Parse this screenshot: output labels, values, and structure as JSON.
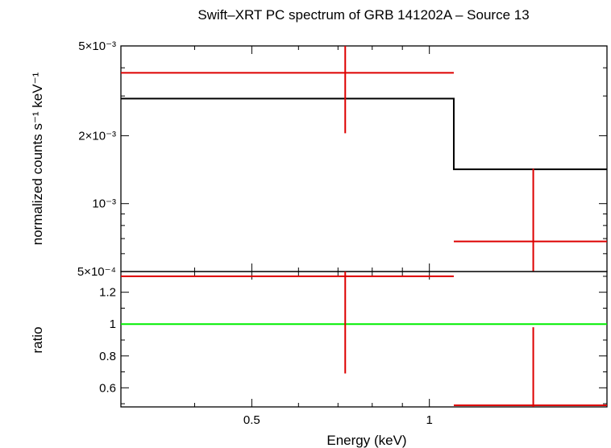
{
  "chart_data": [
    {
      "panel": "top",
      "type": "line",
      "title": "Swift–XRT PC spectrum of GRB 141202A – Source 13",
      "xlabel": "",
      "ylabel": "normalized counts s⁻¹ keV⁻¹",
      "xscale": "log",
      "yscale": "log",
      "xlim": [
        0.3,
        2.0
      ],
      "ylim": [
        0.0005,
        0.005
      ],
      "yticks": [
        {
          "value": 0.005,
          "label": "5×10⁻³"
        },
        {
          "value": 0.002,
          "label": "2×10⁻³"
        },
        {
          "value": 0.001,
          "label": "10⁻³"
        },
        {
          "value": 0.0005,
          "label": "5×10⁻⁴"
        }
      ],
      "series": [
        {
          "kind": "data",
          "color": "#dd0000",
          "points": [
            {
              "x": 0.72,
              "xlo": 0.3,
              "xhi": 1.1,
              "y": 0.0038,
              "ylo": 0.00205,
              "yhi": 0.005
            },
            {
              "x": 1.5,
              "xlo": 1.1,
              "xhi": 2.0,
              "y": 0.00068,
              "ylo": 0.0005,
              "yhi": 0.00143
            }
          ]
        },
        {
          "kind": "model",
          "color": "#000000",
          "steps": [
            {
              "xlo": 0.3,
              "xhi": 1.1,
              "y": 0.00292
            },
            {
              "xlo": 1.1,
              "xhi": 2.0,
              "y": 0.00142
            }
          ]
        }
      ]
    },
    {
      "panel": "bottom",
      "type": "scatter",
      "xlabel": "Energy (keV)",
      "ylabel": "ratio",
      "xscale": "log",
      "xlim": [
        0.3,
        2.0
      ],
      "ylim": [
        0.48,
        1.33
      ],
      "xticks": [
        {
          "value": 0.5,
          "label": "0.5"
        },
        {
          "value": 1.0,
          "label": "1"
        }
      ],
      "yticks": [
        {
          "value": 1.2,
          "label": "1.2"
        },
        {
          "value": 1.0,
          "label": "1"
        },
        {
          "value": 0.8,
          "label": "0.8"
        },
        {
          "value": 0.6,
          "label": "0.6"
        }
      ],
      "series": [
        {
          "kind": "data",
          "color": "#dd0000",
          "points": [
            {
              "x": 0.72,
              "xlo": 0.3,
              "xhi": 1.1,
              "y": 1.3,
              "ylo": 0.69,
              "yhi": 1.33
            },
            {
              "x": 1.5,
              "xlo": 1.1,
              "xhi": 2.0,
              "y": 0.49,
              "ylo": 0.48,
              "yhi": 0.98
            }
          ]
        },
        {
          "kind": "reference",
          "color": "#00ee00",
          "y": 1.0
        }
      ]
    }
  ]
}
